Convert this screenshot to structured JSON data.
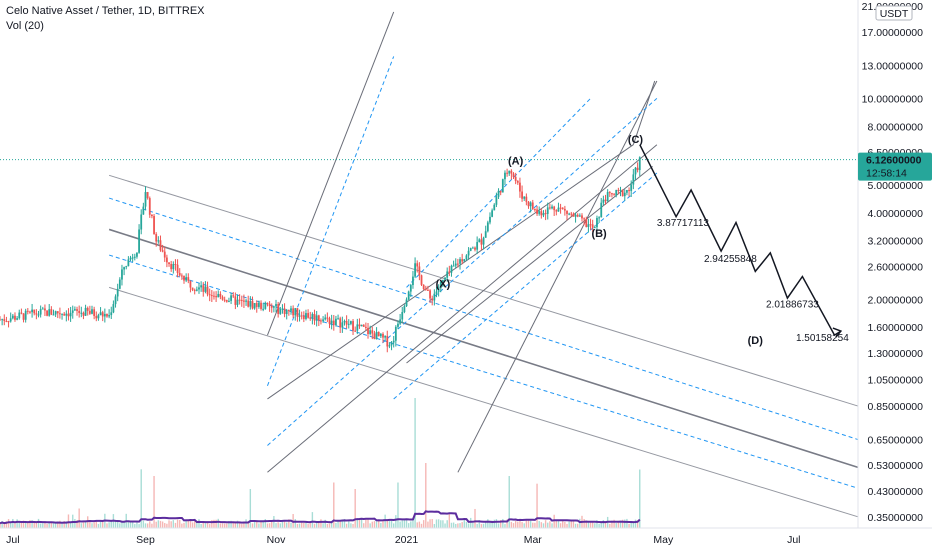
{
  "header": {
    "title": "Celo Native Asset / Tether, 1D, BITTREX",
    "volume": "Vol (20)"
  },
  "price_axis": {
    "currency_badge": "USDT",
    "ticks": [
      "21.00000000",
      "17.00000000",
      "13.00000000",
      "10.00000000",
      "8.00000000",
      "6.50000000",
      "5.00000000",
      "4.00000000",
      "3.20000000",
      "2.60000000",
      "2.00000000",
      "1.60000000",
      "1.30000000",
      "1.05000000",
      "0.85000000",
      "0.65000000",
      "0.53000000",
      "0.43000000",
      "0.35000000"
    ],
    "last_price": "6.12600000",
    "countdown": "12:58:14"
  },
  "time_axis": {
    "labels": [
      "Jul",
      "Sep",
      "Nov",
      "2021",
      "Mar",
      "May",
      "Jul"
    ]
  },
  "colors": {
    "up": "#26a69a",
    "down": "#ef5350",
    "volume_ma": "#5b2c9e",
    "fork_median": "#787b86",
    "fork_solid": "#9598a1",
    "fork_dashed": "#2196f3",
    "projection": "#131722",
    "last_price_bg": "#26a69a"
  },
  "chart_data": {
    "type": "candlestick",
    "symbol": "Celo Native Asset / Tether",
    "timeframe": "1D",
    "exchange": "BITTREX",
    "scale": "log",
    "y_range": [
      0.32,
      22
    ],
    "x_range": [
      "2020-06-25",
      "2021-07-31"
    ],
    "last_price": 6.126,
    "price_anchors": [
      [
        "2020-06-25",
        1.7
      ],
      [
        "2020-07-15",
        1.8
      ],
      [
        "2020-08-05",
        1.8
      ],
      [
        "2020-08-15",
        1.75
      ],
      [
        "2020-08-22",
        2.6
      ],
      [
        "2020-08-28",
        3.0
      ],
      [
        "2020-09-01",
        4.8
      ],
      [
        "2020-09-06",
        3.2
      ],
      [
        "2020-09-12",
        2.7
      ],
      [
        "2020-09-20",
        2.3
      ],
      [
        "2020-10-01",
        2.1
      ],
      [
        "2020-10-15",
        1.95
      ],
      [
        "2020-10-25",
        1.9
      ],
      [
        "2020-11-10",
        1.8
      ],
      [
        "2020-11-25",
        1.7
      ],
      [
        "2020-12-10",
        1.6
      ],
      [
        "2020-12-25",
        1.4
      ],
      [
        "2021-01-05",
        2.6
      ],
      [
        "2021-01-12",
        2.0
      ],
      [
        "2021-01-25",
        2.7
      ],
      [
        "2021-02-05",
        3.2
      ],
      [
        "2021-02-12",
        4.5
      ],
      [
        "2021-02-18",
        5.8
      ],
      [
        "2021-02-24",
        4.6
      ],
      [
        "2021-03-03",
        4.0
      ],
      [
        "2021-03-12",
        4.2
      ],
      [
        "2021-03-25",
        3.7
      ],
      [
        "2021-03-30",
        3.5
      ],
      [
        "2021-04-03",
        4.5
      ],
      [
        "2021-04-15",
        4.8
      ],
      [
        "2021-04-20",
        6.1
      ]
    ],
    "volume_spikes": [
      [
        "2020-08-01",
        0.15
      ],
      [
        "2020-08-30",
        0.45
      ],
      [
        "2020-09-05",
        0.4
      ],
      [
        "2020-10-20",
        0.3
      ],
      [
        "2020-11-28",
        0.35
      ],
      [
        "2020-12-08",
        0.3
      ],
      [
        "2020-12-28",
        0.35
      ],
      [
        "2021-01-05",
        1.0
      ],
      [
        "2021-01-10",
        0.5
      ],
      [
        "2021-02-18",
        0.4
      ],
      [
        "2021-03-03",
        0.3
      ],
      [
        "2021-04-20",
        0.45
      ]
    ],
    "wave_labels": [
      {
        "label": "(A)",
        "date": "2021-02-21",
        "price": 5.9
      },
      {
        "label": "(C)",
        "date": "2021-04-18",
        "price": 7.0
      },
      {
        "label": "(X)",
        "date": "2021-01-18",
        "price": 2.2
      },
      {
        "label": "(B)",
        "date": "2021-04-01",
        "price": 3.3
      },
      {
        "label": "(D)",
        "date": "2021-06-13",
        "price": 1.4
      }
    ],
    "projection_path": [
      [
        "2021-04-20",
        6.9
      ],
      [
        "2021-05-07",
        3.87717113
      ],
      [
        "2021-05-14",
        4.8
      ],
      [
        "2021-05-28",
        2.94255848
      ],
      [
        "2021-06-04",
        3.7
      ],
      [
        "2021-06-13",
        2.5
      ],
      [
        "2021-06-20",
        2.9
      ],
      [
        "2021-06-28",
        2.01886733
      ],
      [
        "2021-07-05",
        2.4
      ],
      [
        "2021-07-20",
        1.50158254
      ],
      [
        "2021-07-23",
        1.55
      ]
    ],
    "target_labels": [
      {
        "text": "3.87717113",
        "date": "2021-04-28",
        "price": 3.6
      },
      {
        "text": "2.94255848",
        "date": "2021-05-20",
        "price": 2.7
      },
      {
        "text": "2.01886733",
        "date": "2021-06-18",
        "price": 1.87
      },
      {
        "text": "1.50158254",
        "date": "2021-07-02",
        "price": 1.43
      }
    ],
    "descending_fork": {
      "median": [
        [
          "2020-08-15",
          3.5
        ],
        [
          "2021-07-31",
          0.52
        ]
      ],
      "solid": [
        [
          [
            "2020-08-15",
            5.4
          ],
          [
            "2021-07-31",
            0.85
          ]
        ],
        [
          [
            "2020-08-15",
            2.2
          ],
          [
            "2021-07-31",
            0.35
          ]
        ]
      ],
      "dashed": [
        [
          [
            "2020-08-15",
            4.5
          ],
          [
            "2021-07-31",
            0.65
          ]
        ],
        [
          [
            "2020-08-15",
            2.85
          ],
          [
            "2021-07-31",
            0.44
          ]
        ]
      ]
    },
    "ascending_fork": {
      "solid": [
        [
          [
            "2020-10-28",
            0.9
          ],
          [
            "2021-04-17",
            6.9
          ]
        ],
        [
          [
            "2021-04-17",
            6.9
          ],
          [
            "2021-04-27",
            11.5
          ]
        ],
        [
          [
            "2021-01-01",
            1.2
          ],
          [
            "2021-04-26",
            5.8
          ]
        ],
        [
          [
            "2020-10-28",
            1.5
          ],
          [
            "2020-12-26",
            20
          ]
        ],
        [
          [
            "2020-10-28",
            0.5
          ],
          [
            "2021-04-28",
            6.9
          ]
        ],
        [
          [
            "2021-01-25",
            0.5
          ],
          [
            "2021-04-28",
            11.5
          ]
        ]
      ],
      "dashed": [
        [
          [
            "2020-10-28",
            1.0
          ],
          [
            "2020-12-26",
            14
          ]
        ],
        [
          [
            "2020-10-28",
            0.62
          ],
          [
            "2021-04-28",
            10.0
          ]
        ],
        [
          [
            "2020-12-26",
            0.9
          ],
          [
            "2021-04-28",
            5.5
          ]
        ],
        [
          [
            "2021-01-01",
            2.2
          ],
          [
            "2021-03-28",
            10
          ]
        ]
      ]
    }
  }
}
